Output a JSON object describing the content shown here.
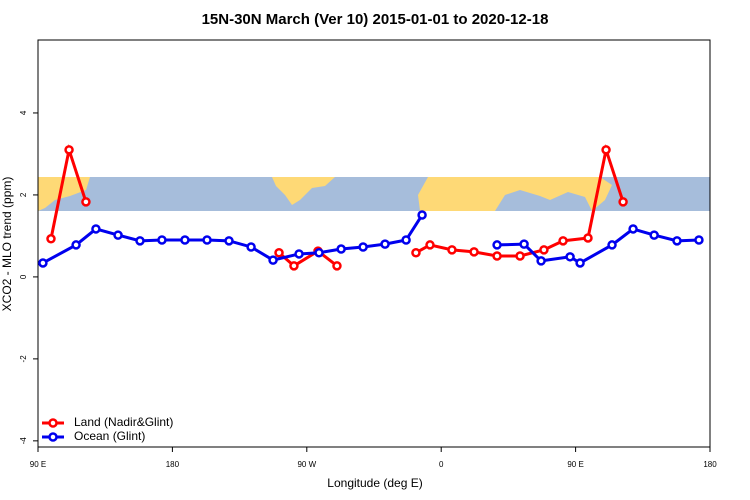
{
  "chart_data": {
    "type": "line",
    "title": "15N-30N March (Ver 10)   2015-01-01 to 2020-12-18",
    "x_label": "Longitude (deg E)",
    "y_label": "XCO2 - MLO trend (ppm)",
    "xlim": [
      90,
      540
    ],
    "xticks": [
      {
        "value": 90,
        "label": "90 E"
      },
      180,
      {
        "value": 270,
        "label": "90 W"
      },
      {
        "value": 360,
        "label": "0"
      },
      {
        "value": 450,
        "label": "90 E"
      },
      {
        "value": 540,
        "label": "180"
      }
    ],
    "ylim": [
      -4.15,
      5.78
    ],
    "yticks": [
      -4,
      -2,
      0,
      2,
      4
    ],
    "grid": false,
    "legend": "bottom-left",
    "series": [
      {
        "name": "Land (Nadir&Glint)",
        "color": "#ff0000",
        "x": [
          98.7,
          110.8,
          122.1,
          null,
          251.4,
          261.4,
          277.5,
          290.2,
          null,
          343.1,
          352.5,
          367.2,
          382,
          397.4,
          412.8,
          428.8,
          441.6,
          458.3,
          470.4,
          481.8
        ],
        "values": [
          0.93,
          3.1,
          1.83,
          null,
          0.59,
          0.27,
          0.63,
          0.27,
          null,
          0.59,
          0.78,
          0.66,
          0.61,
          0.51,
          0.51,
          0.66,
          0.88,
          0.95,
          3.1,
          1.83
        ]
      },
      {
        "name": "Ocean (Glint)",
        "color": "#0000ee",
        "x": [
          93.3,
          115.5,
          128.8,
          143.6,
          158.3,
          173,
          188.4,
          203.2,
          217.9,
          232.7,
          247.4,
          264.8,
          278.2,
          293,
          307.7,
          322.4,
          336.5,
          347.2,
          null,
          397.4,
          415.5,
          426.9,
          446.3,
          453,
          474.4,
          488.5,
          502.6,
          517.9,
          532.6
        ],
        "values": [
          0.34,
          0.78,
          1.17,
          1.02,
          0.88,
          0.9,
          0.9,
          0.9,
          0.88,
          0.73,
          0.41,
          0.56,
          0.59,
          0.68,
          0.73,
          0.8,
          0.9,
          1.51,
          null,
          0.78,
          0.8,
          0.39,
          0.49,
          0.34,
          0.78,
          1.17,
          1.02,
          0.88,
          0.9
        ]
      }
    ]
  }
}
